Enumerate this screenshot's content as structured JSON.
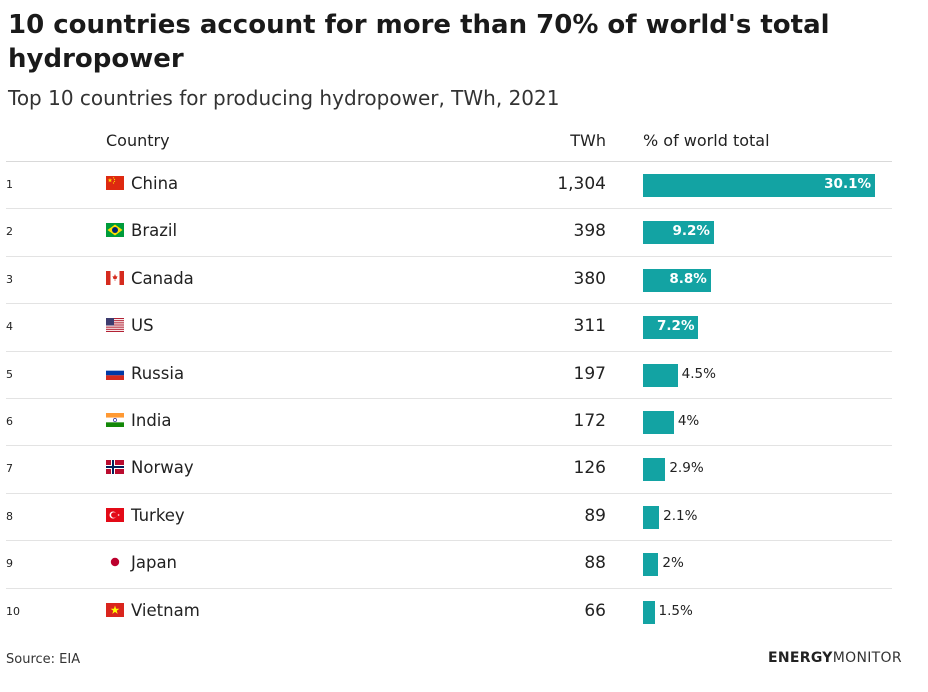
{
  "header": {
    "title": "10 countries account for more than 70% of world's total hydropower",
    "subtitle": "Top 10 countries for producing hydropower, TWh, 2021"
  },
  "columns": {
    "country": "Country",
    "twh": "TWh",
    "pct": "% of world total"
  },
  "rows": [
    {
      "rank": "1",
      "country": "China",
      "twh": "1,304",
      "pct_label": "30.1%",
      "flag": "china-flag-icon"
    },
    {
      "rank": "2",
      "country": "Brazil",
      "twh": "398",
      "pct_label": "9.2%",
      "flag": "brazil-flag-icon"
    },
    {
      "rank": "3",
      "country": "Canada",
      "twh": "380",
      "pct_label": "8.8%",
      "flag": "canada-flag-icon"
    },
    {
      "rank": "4",
      "country": "US",
      "twh": "311",
      "pct_label": "7.2%",
      "flag": "us-flag-icon"
    },
    {
      "rank": "5",
      "country": "Russia",
      "twh": "197",
      "pct_label": "4.5%",
      "flag": "russia-flag-icon"
    },
    {
      "rank": "6",
      "country": "India",
      "twh": "172",
      "pct_label": "4%",
      "flag": "india-flag-icon"
    },
    {
      "rank": "7",
      "country": "Norway",
      "twh": "126",
      "pct_label": "2.9%",
      "flag": "norway-flag-icon"
    },
    {
      "rank": "8",
      "country": "Turkey",
      "twh": "89",
      "pct_label": "2.1%",
      "flag": "turkey-flag-icon"
    },
    {
      "rank": "9",
      "country": "Japan",
      "twh": "88",
      "pct_label": "2%",
      "flag": "japan-flag-icon"
    },
    {
      "rank": "10",
      "country": "Vietnam",
      "twh": "66",
      "pct_label": "1.5%",
      "flag": "vietnam-flag-icon"
    }
  ],
  "chart_data": {
    "type": "table",
    "categories": [
      "China",
      "Brazil",
      "Canada",
      "US",
      "Russia",
      "India",
      "Norway",
      "Turkey",
      "Japan",
      "Vietnam"
    ],
    "series": [
      {
        "name": "TWh",
        "values": [
          1304,
          398,
          380,
          311,
          197,
          172,
          126,
          89,
          88,
          66
        ]
      },
      {
        "name": "% of world total",
        "values": [
          30.1,
          9.2,
          8.8,
          7.2,
          4.5,
          4,
          2.9,
          2.1,
          2,
          1.5
        ]
      }
    ],
    "title": "10 countries account for more than 70% of world's total hydropower",
    "subtitle": "Top 10 countries for producing hydropower, TWh, 2021",
    "bar_color": "#13a3a3"
  },
  "footer": {
    "source": "Source: EIA",
    "logo_bold": "ENERGY",
    "logo_light": "MONITOR"
  }
}
